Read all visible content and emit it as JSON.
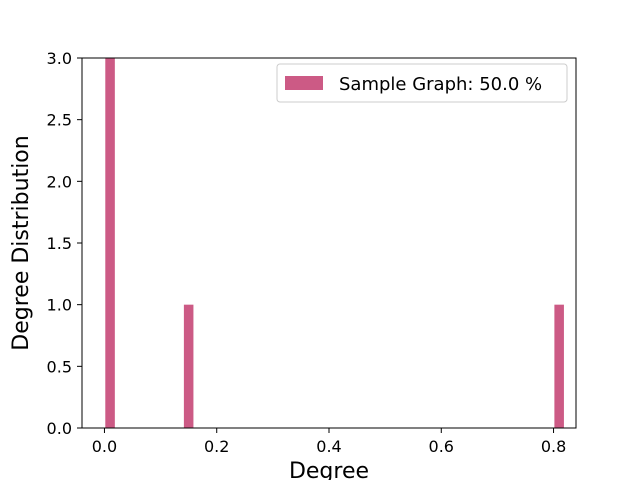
{
  "chart_data": {
    "type": "bar",
    "title": "",
    "xlabel": "Degree",
    "ylabel": "Degree Distribution",
    "xlim": [
      -0.04,
      0.84
    ],
    "ylim": [
      0,
      3.0
    ],
    "bar_width": 0.017,
    "color": "#cc5a85",
    "grid": false,
    "legend_position": "top-right",
    "series": [
      {
        "name": "Sample Graph: 50.0 %",
        "x": [
          0.01,
          0.15,
          0.81
        ],
        "values": [
          3,
          1,
          1
        ]
      }
    ],
    "xticks": [
      0.0,
      0.2,
      0.4,
      0.6,
      0.8
    ],
    "xtick_labels": [
      "0.0",
      "0.2",
      "0.4",
      "0.6",
      "0.8"
    ],
    "yticks": [
      0.0,
      0.5,
      1.0,
      1.5,
      2.0,
      2.5,
      3.0
    ],
    "ytick_labels": [
      "0.0",
      "0.5",
      "1.0",
      "1.5",
      "2.0",
      "2.5",
      "3.0"
    ]
  }
}
